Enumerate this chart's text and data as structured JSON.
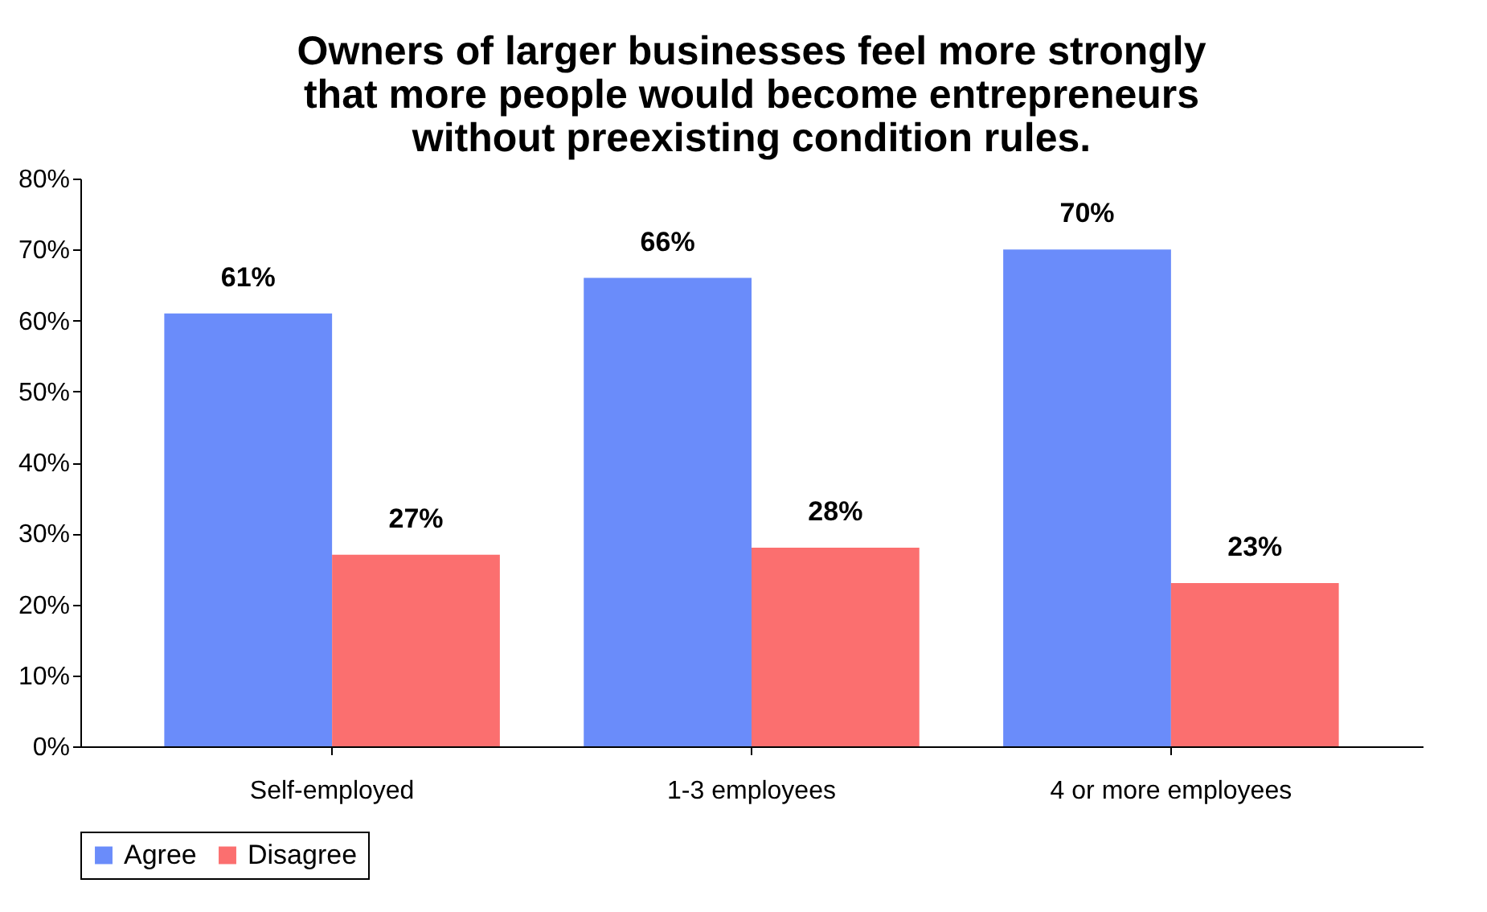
{
  "chart_data": {
    "type": "bar",
    "title": "Owners of larger businesses feel more strongly\nthat more people would become entrepreneurs\nwithout preexisting condition rules.",
    "categories": [
      "Self-employed",
      "1-3 employees",
      "4 or more employees"
    ],
    "series": [
      {
        "name": "Agree",
        "color": "#6a8cfa",
        "values": [
          61,
          66,
          70
        ],
        "value_labels": [
          "61%",
          "66%",
          "70%"
        ]
      },
      {
        "name": "Disagree",
        "color": "#fb6f6f",
        "values": [
          27,
          28,
          23
        ],
        "value_labels": [
          "27%",
          "28%",
          "23%"
        ]
      }
    ],
    "ylim": [
      0,
      80
    ],
    "yticks": [
      {
        "value": 0,
        "label": "0%"
      },
      {
        "value": 10,
        "label": "10%"
      },
      {
        "value": 20,
        "label": "20%"
      },
      {
        "value": 30,
        "label": "30%"
      },
      {
        "value": 40,
        "label": "40%"
      },
      {
        "value": 50,
        "label": "50%"
      },
      {
        "value": 60,
        "label": "60%"
      },
      {
        "value": 70,
        "label": "70%"
      },
      {
        "value": 80,
        "label": "80%"
      }
    ],
    "legend": "bottom",
    "grid": false
  }
}
